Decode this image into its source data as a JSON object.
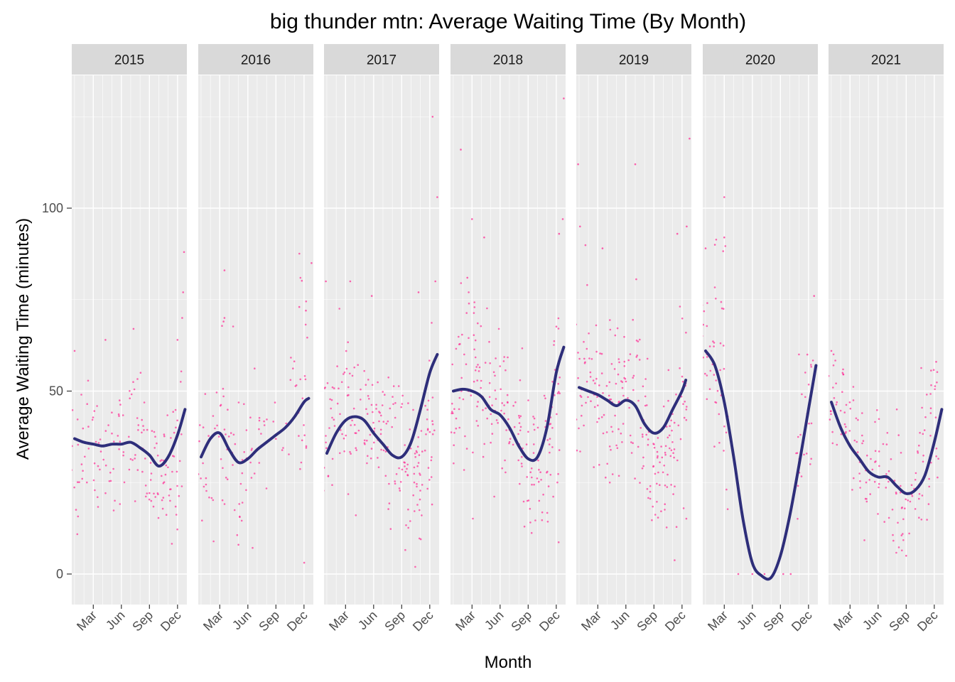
{
  "chart_data": {
    "type": "scatter",
    "title": "big thunder mtn: Average Waiting Time (By Month)",
    "xlabel": "Month",
    "ylabel": "Average Waiting Time (minutes)",
    "ylim": [
      -8,
      130
    ],
    "yticks": [
      0,
      50,
      100
    ],
    "xticks": [
      "Mar",
      "Jun",
      "Sep",
      "Dec"
    ],
    "xtick_months": [
      3,
      6,
      9,
      12
    ],
    "xlim_months": [
      0.7,
      13
    ],
    "grid": true,
    "colors": {
      "points": "#ff2d95",
      "smooth": "#2e2e7a",
      "panel": "#ebebeb",
      "grid": "#ffffff",
      "strip": "#d9d9d9"
    },
    "panels": [
      {
        "label": "2015",
        "smooth": [
          [
            1,
            37
          ],
          [
            2,
            36
          ],
          [
            3,
            35.5
          ],
          [
            4,
            35
          ],
          [
            5,
            35.5
          ],
          [
            6,
            35.5
          ],
          [
            7,
            36
          ],
          [
            8,
            34.5
          ],
          [
            9,
            32.5
          ],
          [
            10,
            29.5
          ],
          [
            11,
            32
          ],
          [
            12,
            38
          ],
          [
            12.8,
            45
          ]
        ],
        "points": [
          [
            1,
            30,
            12,
            11
          ],
          [
            2,
            40,
            10,
            10
          ],
          [
            3,
            37,
            9,
            11
          ],
          [
            4,
            33,
            9,
            10
          ],
          [
            5,
            32,
            8,
            10
          ],
          [
            6,
            36,
            7,
            12
          ],
          [
            7,
            38,
            8,
            12
          ],
          [
            8,
            40,
            8,
            13
          ],
          [
            9,
            29,
            8,
            15
          ],
          [
            10,
            24,
            7,
            16
          ],
          [
            11,
            26,
            8,
            16
          ],
          [
            12,
            35,
            12,
            18
          ]
        ],
        "outliers": [
          [
            12.7,
            88
          ],
          [
            12.6,
            77
          ],
          [
            12.5,
            70
          ],
          [
            7.3,
            67
          ],
          [
            4.3,
            64
          ],
          [
            12.0,
            64
          ],
          [
            1.0,
            61
          ]
        ]
      },
      {
        "label": "2016",
        "smooth": [
          [
            1,
            32
          ],
          [
            2,
            37
          ],
          [
            3,
            38.5
          ],
          [
            4,
            34
          ],
          [
            5,
            30.5
          ],
          [
            6,
            31.5
          ],
          [
            7,
            34
          ],
          [
            8,
            36
          ],
          [
            9,
            38
          ],
          [
            10,
            40
          ],
          [
            11,
            43
          ],
          [
            12,
            47
          ],
          [
            12.5,
            48
          ]
        ],
        "points": [
          [
            1,
            30,
            10,
            10
          ],
          [
            2,
            32,
            10,
            12
          ],
          [
            3,
            42,
            12,
            14
          ],
          [
            4,
            36,
            11,
            14
          ],
          [
            5,
            28,
            10,
            12
          ],
          [
            6,
            33,
            9,
            10
          ],
          [
            7,
            35,
            8,
            8
          ],
          [
            8,
            38,
            6,
            4
          ],
          [
            9,
            42,
            6,
            3
          ],
          [
            10,
            45,
            8,
            4
          ],
          [
            11,
            48,
            10,
            8
          ],
          [
            12,
            44,
            16,
            18
          ]
        ],
        "outliers": [
          [
            3.5,
            83
          ],
          [
            3.5,
            70
          ],
          [
            3.4,
            69
          ],
          [
            12.8,
            85
          ],
          [
            11.5,
            73
          ],
          [
            12.2,
            72
          ],
          [
            5.0,
            8
          ]
        ]
      },
      {
        "label": "2017",
        "smooth": [
          [
            1,
            33
          ],
          [
            2,
            38.5
          ],
          [
            3,
            42
          ],
          [
            4,
            43
          ],
          [
            5,
            42
          ],
          [
            6,
            38.5
          ],
          [
            7,
            35.5
          ],
          [
            8,
            32.5
          ],
          [
            9,
            32
          ],
          [
            10,
            36
          ],
          [
            11,
            45
          ],
          [
            12,
            55
          ],
          [
            12.8,
            60
          ]
        ],
        "points": [
          [
            1,
            38,
            12,
            16
          ],
          [
            2,
            42,
            11,
            15
          ],
          [
            3,
            46,
            10,
            16
          ],
          [
            4,
            45,
            10,
            15
          ],
          [
            5,
            40,
            9,
            15
          ],
          [
            6,
            40,
            8,
            16
          ],
          [
            7,
            38,
            9,
            16
          ],
          [
            8,
            34,
            9,
            18
          ],
          [
            9,
            28,
            10,
            18
          ],
          [
            10,
            25,
            9,
            22
          ],
          [
            11,
            28,
            10,
            22
          ],
          [
            12,
            40,
            15,
            22
          ]
        ],
        "outliers": [
          [
            12.3,
            125
          ],
          [
            12.8,
            103
          ],
          [
            0.9,
            80
          ],
          [
            3.5,
            80
          ],
          [
            12.6,
            80
          ],
          [
            10.8,
            77
          ],
          [
            5.8,
            76
          ]
        ]
      },
      {
        "label": "2018",
        "smooth": [
          [
            1,
            50
          ],
          [
            2,
            50.5
          ],
          [
            3,
            50
          ],
          [
            4,
            48.5
          ],
          [
            5,
            45
          ],
          [
            6,
            43.5
          ],
          [
            7,
            40
          ],
          [
            8,
            35
          ],
          [
            9,
            31.5
          ],
          [
            10,
            32
          ],
          [
            11,
            40
          ],
          [
            12,
            55
          ],
          [
            12.8,
            62
          ]
        ],
        "points": [
          [
            1,
            45,
            12,
            16
          ],
          [
            2,
            50,
            14,
            18
          ],
          [
            3,
            55,
            14,
            18
          ],
          [
            4,
            50,
            12,
            18
          ],
          [
            5,
            45,
            9,
            17
          ],
          [
            6,
            48,
            8,
            15
          ],
          [
            7,
            45,
            9,
            15
          ],
          [
            8,
            40,
            9,
            18
          ],
          [
            9,
            25,
            9,
            15
          ],
          [
            10,
            28,
            9,
            18
          ],
          [
            11,
            35,
            10,
            20
          ],
          [
            12,
            45,
            15,
            22
          ]
        ],
        "outliers": [
          [
            12.8,
            130
          ],
          [
            1.8,
            116
          ],
          [
            3.0,
            97
          ],
          [
            12.7,
            97
          ],
          [
            12.3,
            93
          ],
          [
            4.3,
            92
          ],
          [
            2.5,
            81
          ]
        ]
      },
      {
        "label": "2019",
        "smooth": [
          [
            1,
            51
          ],
          [
            2,
            50
          ],
          [
            3,
            49
          ],
          [
            4,
            47.5
          ],
          [
            5,
            46
          ],
          [
            6,
            47.5
          ],
          [
            7,
            46
          ],
          [
            8,
            41
          ],
          [
            9,
            38.5
          ],
          [
            10,
            40
          ],
          [
            11,
            45
          ],
          [
            12,
            50
          ],
          [
            12.4,
            53
          ]
        ],
        "points": [
          [
            1,
            50,
            12,
            16
          ],
          [
            2,
            52,
            12,
            16
          ],
          [
            3,
            50,
            12,
            18
          ],
          [
            4,
            46,
            10,
            18
          ],
          [
            5,
            45,
            10,
            18
          ],
          [
            6,
            48,
            11,
            18
          ],
          [
            7,
            50,
            12,
            18
          ],
          [
            8,
            40,
            11,
            20
          ],
          [
            9,
            28,
            10,
            20
          ],
          [
            10,
            30,
            10,
            20
          ],
          [
            11,
            38,
            12,
            22
          ],
          [
            12,
            45,
            15,
            22
          ]
        ],
        "outliers": [
          [
            12.8,
            119
          ],
          [
            0.9,
            112
          ],
          [
            7.0,
            112
          ],
          [
            1.1,
            95
          ],
          [
            12.5,
            95
          ],
          [
            11.5,
            93
          ],
          [
            3.5,
            89
          ]
        ]
      },
      {
        "label": "2020",
        "smooth": [
          [
            1,
            61
          ],
          [
            2,
            57
          ],
          [
            3,
            47
          ],
          [
            4,
            32
          ],
          [
            5,
            15
          ],
          [
            6,
            3
          ],
          [
            7,
            -0.5
          ],
          [
            8,
            -1
          ],
          [
            9,
            5
          ],
          [
            10,
            16
          ],
          [
            11,
            30
          ],
          [
            12,
            45
          ],
          [
            12.8,
            57
          ]
        ],
        "points": [
          [
            1,
            62,
            12,
            14
          ],
          [
            2,
            58,
            14,
            16
          ],
          [
            3,
            57,
            15,
            16
          ],
          [
            11,
            38,
            12,
            12
          ],
          [
            12,
            45,
            12,
            14
          ]
        ],
        "outliers": [
          [
            3.0,
            103
          ],
          [
            1.0,
            89
          ],
          [
            2.0,
            90
          ],
          [
            3.0,
            92
          ],
          [
            4.5,
            0
          ],
          [
            6.0,
            0
          ],
          [
            7.3,
            0
          ],
          [
            8.2,
            0
          ],
          [
            9.3,
            0
          ],
          [
            10.1,
            0
          ],
          [
            12.6,
            76
          ]
        ]
      },
      {
        "label": "2021",
        "smooth": [
          [
            1,
            47
          ],
          [
            2,
            40
          ],
          [
            3,
            35
          ],
          [
            4,
            31.5
          ],
          [
            5,
            28
          ],
          [
            6,
            26.5
          ],
          [
            7,
            26.5
          ],
          [
            8,
            24
          ],
          [
            9,
            22
          ],
          [
            10,
            23
          ],
          [
            11,
            27
          ],
          [
            12,
            36
          ],
          [
            12.8,
            45
          ]
        ],
        "points": [
          [
            1,
            48,
            9,
            13
          ],
          [
            2,
            44,
            9,
            12
          ],
          [
            3,
            35,
            9,
            12
          ],
          [
            4,
            30,
            8,
            12
          ],
          [
            5,
            22,
            7,
            12
          ],
          [
            6,
            27,
            8,
            12
          ],
          [
            7,
            28,
            9,
            12
          ],
          [
            8,
            22,
            10,
            14
          ],
          [
            9,
            13,
            6,
            12
          ],
          [
            10,
            26,
            9,
            14
          ],
          [
            11,
            35,
            10,
            14
          ],
          [
            12,
            40,
            11,
            18
          ]
        ],
        "outliers": [
          [
            12.2,
            58
          ],
          [
            1.0,
            61
          ],
          [
            2.2,
            55
          ],
          [
            9.0,
            5
          ],
          [
            8.0,
            45
          ]
        ]
      }
    ]
  }
}
